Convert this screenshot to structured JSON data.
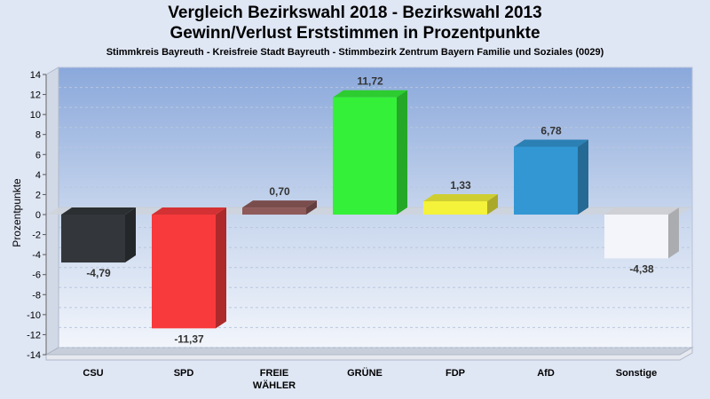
{
  "chart_data": {
    "type": "bar",
    "title": "Vergleich Bezirkswahl 2018 - Bezirkswahl 2013",
    "subtitle": "Gewinn/Verlust Erststimmen in Prozentpunkte",
    "subtitle2": "Stimmkreis Bayreuth - Kreisfreie Stadt Bayreuth - Stimmbezirk Zentrum Bayern Familie und Soziales (0029)",
    "ylabel": "Prozentpunkte",
    "ylim": [
      -14,
      14
    ],
    "yticks": [
      "14",
      "12",
      "10",
      "8",
      "6",
      "4",
      "2",
      "0",
      "-2",
      "-4",
      "-6",
      "-8",
      "-10",
      "-12",
      "-14"
    ],
    "categories": [
      [
        "CSU"
      ],
      [
        "SPD"
      ],
      [
        "FREIE",
        "WÄHLER"
      ],
      [
        "GRÜNE"
      ],
      [
        "FDP"
      ],
      [
        "AfD"
      ],
      [
        "Sonstige"
      ]
    ],
    "values": [
      -4.79,
      -11.37,
      0.7,
      11.72,
      1.33,
      6.78,
      -4.38
    ],
    "value_labels": [
      "-4,79",
      "-11,37",
      "0,70",
      "11,72",
      "1,33",
      "6,78",
      "-4,38"
    ],
    "colors": [
      "#33373b",
      "#f83a3c",
      "#8f5a5a",
      "#35f038",
      "#f4f23a",
      "#3397d4",
      "#f3f5fa"
    ],
    "grid": true,
    "legend": "none"
  }
}
